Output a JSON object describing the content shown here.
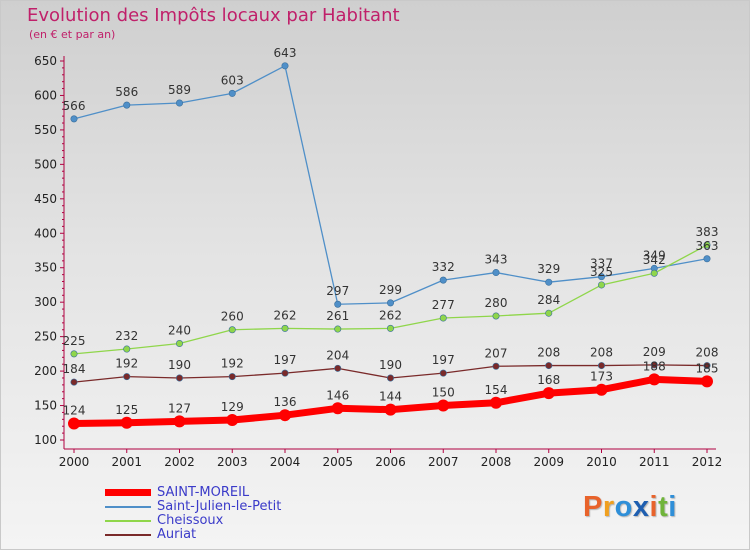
{
  "header": {
    "title": "Evolution des Impôts locaux par Habitant",
    "subtitle": "(en € et par an)"
  },
  "logo": {
    "text": "Proxiti",
    "colors": [
      "#e8632b",
      "#f0a020",
      "#2f8fd8",
      "#1f5fb0",
      "#e8632b",
      "#6fb43a",
      "#2f8fd8"
    ]
  },
  "chart_data": {
    "type": "line",
    "x": [
      "2000",
      "2001",
      "2002",
      "2003",
      "2004",
      "2005",
      "2006",
      "2007",
      "2008",
      "2009",
      "2010",
      "2011",
      "2012"
    ],
    "ylim": [
      100,
      650
    ],
    "yticks": [
      100,
      150,
      200,
      250,
      300,
      350,
      400,
      450,
      500,
      550,
      600,
      650
    ],
    "grid": false,
    "legend_position": "bottom-left",
    "series": [
      {
        "name": "SAINT-MOREIL",
        "color": "#ff0000",
        "values": [
          124,
          125,
          127,
          129,
          136,
          146,
          144,
          150,
          154,
          168,
          173,
          188,
          185
        ]
      },
      {
        "name": "Saint-Julien-le-Petit",
        "color": "#4f8fc8",
        "values": [
          566,
          586,
          589,
          603,
          643,
          297,
          299,
          332,
          343,
          329,
          337,
          349,
          363
        ]
      },
      {
        "name": "Cheissoux",
        "color": "#8fd64a",
        "values": [
          225,
          232,
          240,
          260,
          262,
          261,
          262,
          277,
          280,
          284,
          325,
          342,
          383
        ]
      },
      {
        "name": "Auriat",
        "color": "#7a2a2a",
        "values": [
          184,
          192,
          190,
          192,
          197,
          204,
          190,
          197,
          207,
          208,
          208,
          209,
          208
        ]
      }
    ]
  }
}
